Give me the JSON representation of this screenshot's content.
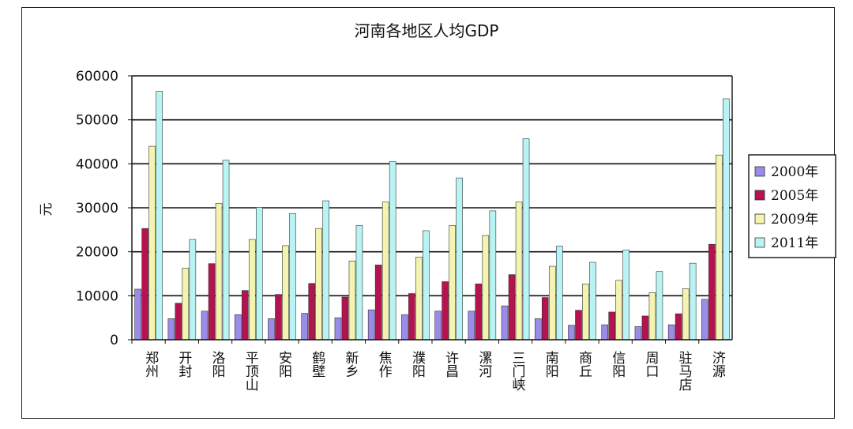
{
  "chart_data": {
    "type": "bar",
    "title": "河南各地区人均GDP",
    "xlabel": "",
    "ylabel": "元",
    "ylim": [
      0,
      60000
    ],
    "yticks": [
      0,
      10000,
      20000,
      30000,
      40000,
      50000,
      60000
    ],
    "grid": true,
    "legend_position": "right",
    "categories": [
      "郑州",
      "开封",
      "洛阳",
      "平顶山",
      "安阳",
      "鹤壁",
      "新乡",
      "焦作",
      "濮阳",
      "许昌",
      "漯河",
      "三门峡",
      "南阳",
      "商丘",
      "信阳",
      "周口",
      "驻马店",
      "济源"
    ],
    "series": [
      {
        "name": "2000年",
        "color": "#9a8ce8",
        "values": [
          11500,
          4800,
          6500,
          5700,
          4800,
          6000,
          5000,
          6800,
          5700,
          6500,
          6500,
          7700,
          4800,
          3300,
          3400,
          3000,
          3400,
          9200
        ]
      },
      {
        "name": "2005年",
        "color": "#b5134f",
        "values": [
          25300,
          8300,
          17300,
          11200,
          10300,
          12800,
          9700,
          17000,
          10500,
          13200,
          12700,
          14800,
          9600,
          6700,
          6300,
          5400,
          5900,
          21700
        ]
      },
      {
        "name": "2009年",
        "color": "#f4f4b0",
        "values": [
          44000,
          16300,
          31000,
          22800,
          21400,
          25300,
          17900,
          31300,
          18800,
          26000,
          23700,
          31300,
          16700,
          12700,
          13500,
          10700,
          11600,
          42000
        ]
      },
      {
        "name": "2011年",
        "color": "#b8f4f4",
        "values": [
          56500,
          22800,
          40800,
          30100,
          28700,
          31600,
          26000,
          40500,
          24800,
          36800,
          29300,
          45700,
          21300,
          17600,
          20400,
          15500,
          17400,
          54800
        ]
      }
    ]
  }
}
